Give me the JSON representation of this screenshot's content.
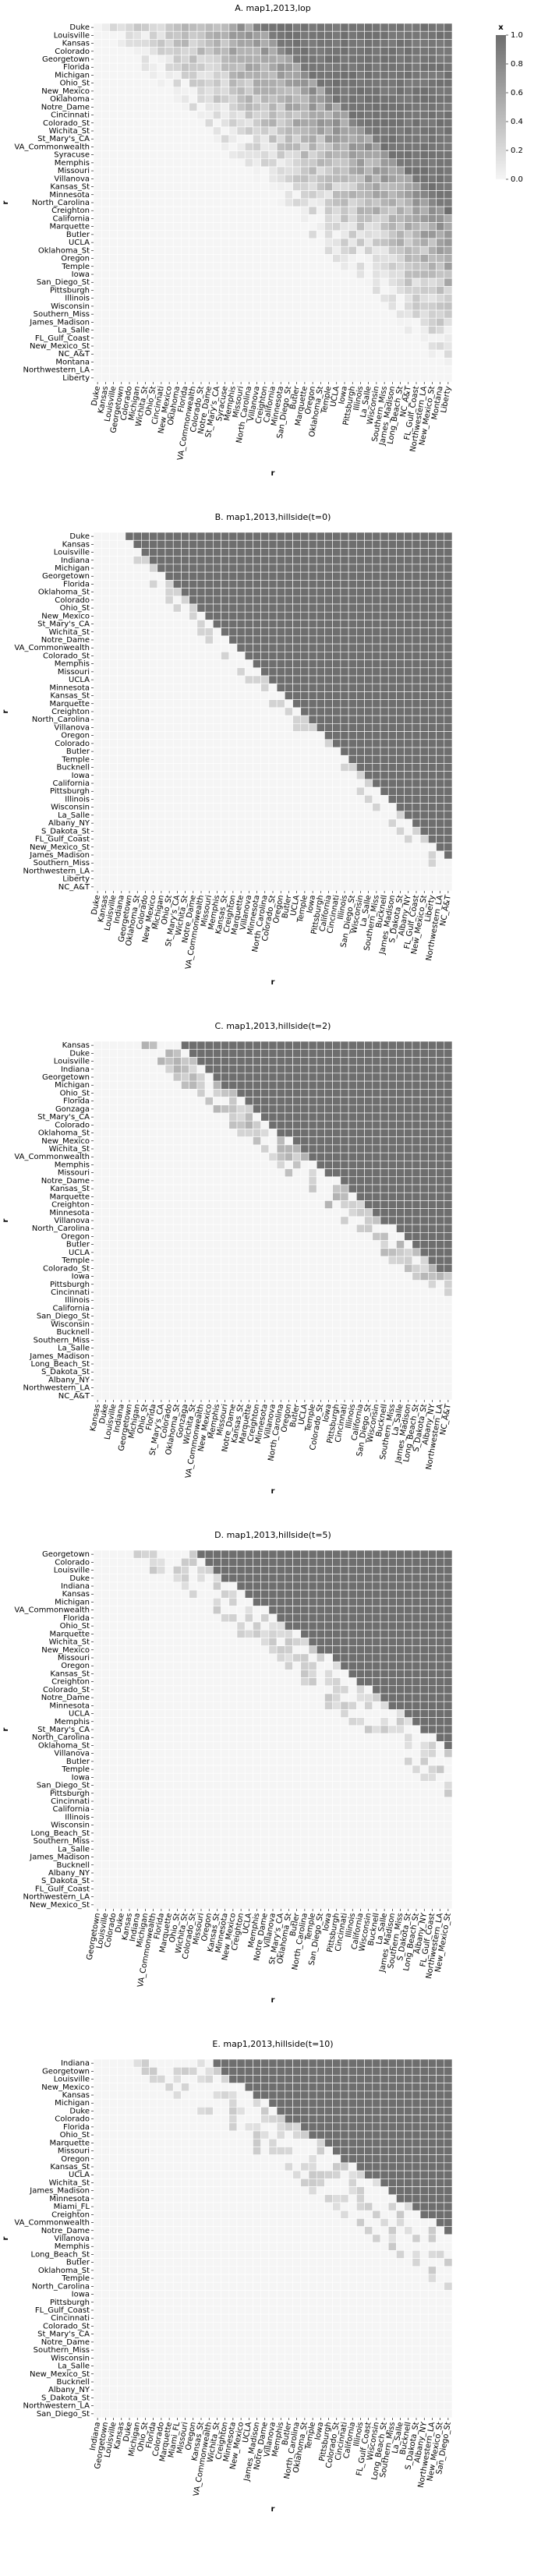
{
  "colorbar": {
    "title": "x",
    "ticks": [
      "0.0",
      "0.2",
      "0.4",
      "0.6",
      "0.8",
      "1.0"
    ],
    "min": 0.0,
    "max": 1.0,
    "color_low": "#f5f5f5",
    "color_high": "#6e6e6e"
  },
  "chart_data": [
    {
      "type": "heatmap",
      "title": "A. map1,2013,lop",
      "xlabel": "r",
      "ylabel": "r",
      "pattern": "graded",
      "x_tick_labels": [
        "Duke",
        "Kansas",
        "Louisville",
        "Georgetown",
        "Colorado",
        "Michigan",
        "Wichita_St",
        "Ohio_St",
        "Cincinnati",
        "New_Mexico",
        "Oklahoma",
        "Florida",
        "VA_Commonwealth",
        "Colorado_St",
        "Notre_Dame",
        "St_Mary's_CA",
        "Syracuse",
        "Memphis",
        "Missouri",
        "North_Carolina",
        "Villanova",
        "Creighton",
        "California",
        "Minnesota",
        "San_Diego_St",
        "Butler",
        "Marquette",
        "Oregon",
        "Oklahoma_St",
        "Temple",
        "UCLA",
        "Iowa",
        "Pittsburgh",
        "Illinois",
        "La_Salle",
        "Wisconsin",
        "Southern_Miss",
        "James_Madison",
        "Long_Beach_St",
        "NC_A&T",
        "FL_Gulf_Coast",
        "Northwestern_LA",
        "New_Mexico_St",
        "Montana",
        "Liberty"
      ],
      "y_tick_labels": [
        "Duke",
        "Louisville",
        "Kansas",
        "Colorado",
        "Georgetown",
        "Florida",
        "Michigan",
        "Ohio_St",
        "New_Mexico",
        "Oklahoma",
        "Notre_Dame",
        "Cincinnati",
        "Colorado_St",
        "Wichita_St",
        "St_Mary's_CA",
        "VA_Commonwealth",
        "Syracuse",
        "Memphis",
        "Missouri",
        "Villanova",
        "Kansas_St",
        "Minnesota",
        "North_Carolina",
        "Creighton",
        "California",
        "Marquette",
        "Butler",
        "UCLA",
        "Oklahoma_St",
        "Oregon",
        "Temple",
        "Iowa",
        "San_Diego_St",
        "Pittsburgh",
        "Illinois",
        "Wisconsin",
        "Southern_Miss",
        "James_Madison",
        "La_Salle",
        "FL_Gulf_Coast",
        "New_Mexico_St",
        "NC_A&T",
        "Montana",
        "Northwestern_LA",
        "Liberty"
      ]
    },
    {
      "type": "heatmap",
      "title": "B. map1,2013,hillside(t=0)",
      "xlabel": "r",
      "ylabel": "r",
      "pattern": "sharp",
      "x_tick_labels": [
        "Duke",
        "Kansas",
        "Louisville",
        "Indiana",
        "Georgetown",
        "Oklahoma_St",
        "Colorado",
        "New_Mexico",
        "Michigan",
        "Ohio_St",
        "St_Mary's_CA",
        "Wichita_St",
        "Notre_Dame",
        "VA_Commonwealth",
        "Missouri",
        "Memphis",
        "Kansas_St",
        "Creighton",
        "Marquette",
        "Villanova",
        "Minnesota",
        "North_Carolina",
        "Colorado_St",
        "Oregon",
        "Butler",
        "UCLA",
        "Temple",
        "Iowa",
        "Pittsburgh",
        "California",
        "Cincinnati",
        "Illinois",
        "San_Diego_St",
        "Wisconsin",
        "La_Salle",
        "Southern_Miss",
        "Bucknell",
        "James_Madison",
        "S_Dakota_St",
        "Albany_NY",
        "FL_Gulf_Coast",
        "New_Mexico_St",
        "Liberty",
        "Northwestern_LA",
        "NC_A&T"
      ],
      "y_tick_labels": [
        "Duke",
        "Kansas",
        "Louisville",
        "Indiana",
        "Michigan",
        "Georgetown",
        "Florida",
        "Oklahoma_St",
        "Colorado",
        "Ohio_St",
        "New_Mexico",
        "St_Mary's_CA",
        "Wichita_St",
        "Notre_Dame",
        "VA_Commonwealth",
        "Colorado_St",
        "Memphis",
        "Missouri",
        "UCLA",
        "Minnesota",
        "Kansas_St",
        "Marquette",
        "Creighton",
        "North_Carolina",
        "Villanova",
        "Oregon",
        "Colorado",
        "Butler",
        "Temple",
        "Bucknell",
        "Iowa",
        "California",
        "Pittsburgh",
        "Illinois",
        "Wisconsin",
        "La_Salle",
        "Albany_NY",
        "S_Dakota_St",
        "FL_Gulf_Coast",
        "New_Mexico_St",
        "James_Madison",
        "Southern_Miss",
        "Northwestern_LA",
        "Liberty",
        "NC_A&T"
      ]
    },
    {
      "type": "heatmap",
      "title": "C. map1,2013,hillside(t=2)",
      "xlabel": "r",
      "ylabel": "r",
      "pattern": "soft",
      "x_tick_labels": [
        "Kansas",
        "Duke",
        "Louisville",
        "Indiana",
        "Georgetown",
        "Michigan",
        "Ohio_St",
        "Florida",
        "St_Mary's_CA",
        "Colorado",
        "Oklahoma_St",
        "Gonzaga",
        "Wichita_St",
        "VA_Commonwealth",
        "New_Mexico",
        "Memphis",
        "Missouri",
        "Notre_Dame",
        "Kansas_St",
        "Marquette",
        "Creighton",
        "Minnesota",
        "Villanova",
        "North_Carolina",
        "Oregon",
        "Butler",
        "UCLA",
        "Temple",
        "Colorado_St",
        "Iowa",
        "Pittsburgh",
        "Cincinnati",
        "Illinois",
        "California",
        "San_Diego_St",
        "Wisconsin",
        "Bucknell",
        "Southern_Miss",
        "La_Salle",
        "James_Madison",
        "Long_Beach_St",
        "S_Dakota_St",
        "Albany_NY",
        "Northwestern_LA",
        "NC_A&T"
      ],
      "y_tick_labels": [
        "Kansas",
        "Duke",
        "Louisville",
        "Indiana",
        "Georgetown",
        "Michigan",
        "Ohio_St",
        "Florida",
        "Gonzaga",
        "St_Mary's_CA",
        "Colorado",
        "Oklahoma_St",
        "New_Mexico",
        "Wichita_St",
        "VA_Commonwealth",
        "Memphis",
        "Missouri",
        "Notre_Dame",
        "Kansas_St",
        "Marquette",
        "Creighton",
        "Minnesota",
        "Villanova",
        "North_Carolina",
        "Oregon",
        "Butler",
        "UCLA",
        "Temple",
        "Colorado_St",
        "Iowa",
        "Pittsburgh",
        "Cincinnati",
        "Illinois",
        "California",
        "San_Diego_St",
        "Wisconsin",
        "Bucknell",
        "Southern_Miss",
        "La_Salle",
        "James_Madison",
        "Long_Beach_St",
        "S_Dakota_St",
        "Albany_NY",
        "Northwestern_LA",
        "NC_A&T"
      ]
    },
    {
      "type": "heatmap",
      "title": "D. map1,2013,hillside(t=5)",
      "xlabel": "r",
      "ylabel": "r",
      "pattern": "banded",
      "x_tick_labels": [
        "Georgetown",
        "Louisville",
        "Colorado",
        "Duke",
        "Kansas",
        "Indiana",
        "Michigan",
        "VA_Commonwealth",
        "Florida",
        "Marquette",
        "Ohio_St",
        "Wichita_St",
        "Colorado_St",
        "Missouri",
        "Oregon",
        "Kansas_St",
        "Minnesota",
        "New_Mexico",
        "Creighton",
        "UCLA",
        "Memphis",
        "Notre_Dame",
        "Villanova",
        "St_Mary's_CA",
        "Oklahoma_St",
        "Butler",
        "North_Carolina",
        "Temple",
        "San_Diego_St",
        "Iowa",
        "Pittsburgh",
        "Cincinnati",
        "Illinois",
        "California",
        "Wisconsin",
        "Bucknell",
        "La_Salle",
        "James_Madison",
        "Southern_Miss",
        "S_Dakota_St",
        "Long_Beach_St",
        "Albany_NY",
        "FL_Gulf_Coast",
        "Northwestern_LA",
        "New_Mexico_St"
      ],
      "y_tick_labels": [
        "Georgetown",
        "Colorado",
        "Louisville",
        "Duke",
        "Indiana",
        "Kansas",
        "Michigan",
        "VA_Commonwealth",
        "Florida",
        "Ohio_St",
        "Marquette",
        "Wichita_St",
        "New_Mexico",
        "Missouri",
        "Oregon",
        "Kansas_St",
        "Creighton",
        "Colorado_St",
        "Notre_Dame",
        "Minnesota",
        "UCLA",
        "Memphis",
        "St_Mary's_CA",
        "North_Carolina",
        "Oklahoma_St",
        "Villanova",
        "Butler",
        "Temple",
        "Iowa",
        "San_Diego_St",
        "Pittsburgh",
        "Cincinnati",
        "California",
        "Illinois",
        "Wisconsin",
        "Long_Beach_St",
        "Southern_Miss",
        "La_Salle",
        "James_Madison",
        "Bucknell",
        "Albany_NY",
        "S_Dakota_St",
        "FL_Gulf_Coast",
        "Northwestern_LA",
        "New_Mexico_St"
      ]
    },
    {
      "type": "heatmap",
      "title": "E. map1,2013,hillside(t=10)",
      "xlabel": "r",
      "ylabel": "r",
      "pattern": "scattered",
      "x_tick_labels": [
        "Indiana",
        "Georgetown",
        "Louisville",
        "Kansas",
        "Duke",
        "Michigan",
        "Ohio_St",
        "Florida",
        "Colorado",
        "Marquette",
        "Miami_FL",
        "Missouri",
        "Oregon",
        "Kansas_St",
        "VA_Commonwealth",
        "Wichita_St",
        "Creighton",
        "Minnesota",
        "New_Mexico",
        "UCLA",
        "James_Madison",
        "Notre_Dame",
        "Villanova",
        "Memphis",
        "Butler",
        "North_Carolina",
        "Oklahoma_St",
        "Temple",
        "Iowa",
        "Pittsburgh",
        "Colorado_St",
        "Cincinnati",
        "California",
        "Illinois",
        "FL_Gulf_Coast",
        "Wisconsin",
        "Long_Beach_St",
        "Southern_Miss",
        "La_Salle",
        "Bucknell",
        "S_Dakota_St",
        "Albany_NY",
        "Northwestern_LA",
        "New_Mexico_St",
        "San_Diego_St"
      ],
      "y_tick_labels": [
        "Indiana",
        "Georgetown",
        "Louisville",
        "New_Mexico",
        "Kansas",
        "Michigan",
        "Duke",
        "Colorado",
        "Florida",
        "Ohio_St",
        "Marquette",
        "Missouri",
        "Oregon",
        "Kansas_St",
        "UCLA",
        "Wichita_St",
        "James_Madison",
        "Minnesota",
        "Miami_FL",
        "Creighton",
        "VA_Commonwealth",
        "Notre_Dame",
        "Villanova",
        "Memphis",
        "Long_Beach_St",
        "Butler",
        "Oklahoma_St",
        "Temple",
        "North_Carolina",
        "Iowa",
        "Pittsburgh",
        "FL_Gulf_Coast",
        "Cincinnati",
        "Colorado_St",
        "St_Mary's_CA",
        "Notre_Dame",
        "Southern_Miss",
        "Wisconsin",
        "La_Salle",
        "New_Mexico_St",
        "Bucknell",
        "Albany_NY",
        "S_Dakota_St",
        "Northwestern_LA",
        "San_Diego_St"
      ]
    }
  ]
}
